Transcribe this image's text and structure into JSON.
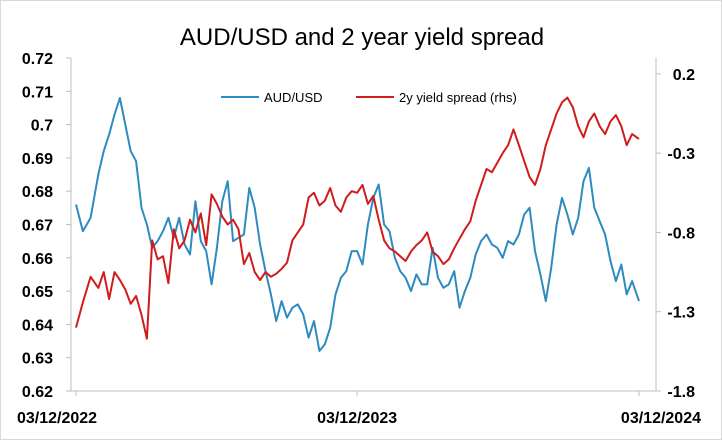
{
  "chart_data": {
    "type": "line",
    "title": "AUD/USD and 2 year yield spread",
    "x_ticks": [
      "03/12/2022",
      "03/12/2023",
      "03/12/2024"
    ],
    "x_range": [
      "2022-12-03",
      "2024-12-03"
    ],
    "y_left": {
      "ticks": [
        "0.72",
        "0.71",
        "0.7",
        "0.69",
        "0.68",
        "0.67",
        "0.66",
        "0.65",
        "0.64",
        "0.63",
        "0.62"
      ],
      "range": [
        0.62,
        0.72
      ]
    },
    "y_right": {
      "ticks": [
        "0.2",
        "-0.3",
        "-0.8",
        "-1.3",
        "-1.8"
      ],
      "range": [
        -1.8,
        0.3
      ]
    },
    "legend": {
      "placement": "top-center"
    },
    "grid": false,
    "series": [
      {
        "name": "AUD/USD",
        "axis": "left",
        "color": "#2E8BC0",
        "points": [
          [
            "2022-12-03",
            0.676
          ],
          [
            "2022-12-12",
            0.668
          ],
          [
            "2022-12-22",
            0.672
          ],
          [
            "2023-01-01",
            0.685
          ],
          [
            "2023-01-08",
            0.692
          ],
          [
            "2023-01-15",
            0.697
          ],
          [
            "2023-01-22",
            0.703
          ],
          [
            "2023-01-29",
            0.708
          ],
          [
            "2023-02-05",
            0.7
          ],
          [
            "2023-02-12",
            0.692
          ],
          [
            "2023-02-19",
            0.689
          ],
          [
            "2023-02-26",
            0.675
          ],
          [
            "2023-03-05",
            0.67
          ],
          [
            "2023-03-12",
            0.663
          ],
          [
            "2023-03-19",
            0.665
          ],
          [
            "2023-03-26",
            0.668
          ],
          [
            "2023-04-02",
            0.672
          ],
          [
            "2023-04-09",
            0.666
          ],
          [
            "2023-04-16",
            0.672
          ],
          [
            "2023-04-23",
            0.664
          ],
          [
            "2023-04-30",
            0.661
          ],
          [
            "2023-05-07",
            0.677
          ],
          [
            "2023-05-14",
            0.665
          ],
          [
            "2023-05-21",
            0.662
          ],
          [
            "2023-05-28",
            0.652
          ],
          [
            "2023-06-04",
            0.663
          ],
          [
            "2023-06-11",
            0.677
          ],
          [
            "2023-06-18",
            0.683
          ],
          [
            "2023-06-25",
            0.665
          ],
          [
            "2023-07-02",
            0.666
          ],
          [
            "2023-07-09",
            0.667
          ],
          [
            "2023-07-16",
            0.681
          ],
          [
            "2023-07-23",
            0.675
          ],
          [
            "2023-07-30",
            0.664
          ],
          [
            "2023-08-06",
            0.656
          ],
          [
            "2023-08-13",
            0.649
          ],
          [
            "2023-08-20",
            0.641
          ],
          [
            "2023-08-27",
            0.647
          ],
          [
            "2023-09-03",
            0.642
          ],
          [
            "2023-09-10",
            0.645
          ],
          [
            "2023-09-17",
            0.646
          ],
          [
            "2023-09-24",
            0.643
          ],
          [
            "2023-10-01",
            0.636
          ],
          [
            "2023-10-08",
            0.641
          ],
          [
            "2023-10-15",
            0.632
          ],
          [
            "2023-10-22",
            0.634
          ],
          [
            "2023-10-29",
            0.639
          ],
          [
            "2023-11-05",
            0.649
          ],
          [
            "2023-11-12",
            0.654
          ],
          [
            "2023-11-19",
            0.656
          ],
          [
            "2023-11-26",
            0.662
          ],
          [
            "2023-12-03",
            0.662
          ],
          [
            "2023-12-10",
            0.658
          ],
          [
            "2023-12-17",
            0.67
          ],
          [
            "2023-12-24",
            0.678
          ],
          [
            "2023-12-31",
            0.682
          ],
          [
            "2024-01-07",
            0.67
          ],
          [
            "2024-01-14",
            0.668
          ],
          [
            "2024-01-21",
            0.66
          ],
          [
            "2024-01-28",
            0.656
          ],
          [
            "2024-02-04",
            0.654
          ],
          [
            "2024-02-11",
            0.65
          ],
          [
            "2024-02-18",
            0.655
          ],
          [
            "2024-02-25",
            0.652
          ],
          [
            "2024-03-03",
            0.652
          ],
          [
            "2024-03-10",
            0.663
          ],
          [
            "2024-03-17",
            0.654
          ],
          [
            "2024-03-24",
            0.651
          ],
          [
            "2024-03-31",
            0.652
          ],
          [
            "2024-04-07",
            0.656
          ],
          [
            "2024-04-14",
            0.645
          ],
          [
            "2024-04-21",
            0.65
          ],
          [
            "2024-04-28",
            0.654
          ],
          [
            "2024-05-05",
            0.661
          ],
          [
            "2024-05-12",
            0.665
          ],
          [
            "2024-05-19",
            0.667
          ],
          [
            "2024-05-26",
            0.664
          ],
          [
            "2024-06-02",
            0.663
          ],
          [
            "2024-06-09",
            0.66
          ],
          [
            "2024-06-16",
            0.665
          ],
          [
            "2024-06-23",
            0.664
          ],
          [
            "2024-06-30",
            0.667
          ],
          [
            "2024-07-07",
            0.673
          ],
          [
            "2024-07-14",
            0.675
          ],
          [
            "2024-07-21",
            0.662
          ],
          [
            "2024-07-28",
            0.655
          ],
          [
            "2024-08-04",
            0.647
          ],
          [
            "2024-08-11",
            0.657
          ],
          [
            "2024-08-18",
            0.67
          ],
          [
            "2024-08-25",
            0.678
          ],
          [
            "2024-09-01",
            0.673
          ],
          [
            "2024-09-08",
            0.667
          ],
          [
            "2024-09-15",
            0.672
          ],
          [
            "2024-09-22",
            0.683
          ],
          [
            "2024-09-29",
            0.687
          ],
          [
            "2024-10-06",
            0.675
          ],
          [
            "2024-10-13",
            0.671
          ],
          [
            "2024-10-20",
            0.667
          ],
          [
            "2024-10-27",
            0.659
          ],
          [
            "2024-11-03",
            0.653
          ],
          [
            "2024-11-10",
            0.658
          ],
          [
            "2024-11-17",
            0.649
          ],
          [
            "2024-11-24",
            0.653
          ],
          [
            "2024-12-03",
            0.647
          ]
        ]
      },
      {
        "name": "2y yield spread (rhs)",
        "axis": "right",
        "color": "#D01C1C",
        "points": [
          [
            "2022-12-03",
            -1.4
          ],
          [
            "2022-12-12",
            -1.24
          ],
          [
            "2022-12-22",
            -1.08
          ],
          [
            "2023-01-01",
            -1.15
          ],
          [
            "2023-01-08",
            -1.05
          ],
          [
            "2023-01-15",
            -1.22
          ],
          [
            "2023-01-22",
            -1.05
          ],
          [
            "2023-01-29",
            -1.1
          ],
          [
            "2023-02-05",
            -1.16
          ],
          [
            "2023-02-12",
            -1.25
          ],
          [
            "2023-02-19",
            -1.2
          ],
          [
            "2023-02-26",
            -1.32
          ],
          [
            "2023-03-05",
            -1.47
          ],
          [
            "2023-03-12",
            -0.85
          ],
          [
            "2023-03-19",
            -0.97
          ],
          [
            "2023-03-26",
            -0.95
          ],
          [
            "2023-04-02",
            -1.12
          ],
          [
            "2023-04-09",
            -0.78
          ],
          [
            "2023-04-16",
            -0.9
          ],
          [
            "2023-04-23",
            -0.85
          ],
          [
            "2023-04-30",
            -0.72
          ],
          [
            "2023-05-07",
            -0.8
          ],
          [
            "2023-05-14",
            -0.68
          ],
          [
            "2023-05-21",
            -0.88
          ],
          [
            "2023-05-28",
            -0.56
          ],
          [
            "2023-06-04",
            -0.62
          ],
          [
            "2023-06-11",
            -0.7
          ],
          [
            "2023-06-18",
            -0.75
          ],
          [
            "2023-06-25",
            -0.72
          ],
          [
            "2023-07-02",
            -0.78
          ],
          [
            "2023-07-09",
            -1.0
          ],
          [
            "2023-07-16",
            -0.93
          ],
          [
            "2023-07-23",
            -1.05
          ],
          [
            "2023-07-30",
            -1.1
          ],
          [
            "2023-08-06",
            -1.05
          ],
          [
            "2023-08-13",
            -1.08
          ],
          [
            "2023-08-20",
            -1.06
          ],
          [
            "2023-08-27",
            -1.03
          ],
          [
            "2023-09-03",
            -0.99
          ],
          [
            "2023-09-10",
            -0.85
          ],
          [
            "2023-09-17",
            -0.8
          ],
          [
            "2023-09-24",
            -0.75
          ],
          [
            "2023-10-01",
            -0.58
          ],
          [
            "2023-10-08",
            -0.55
          ],
          [
            "2023-10-15",
            -0.63
          ],
          [
            "2023-10-22",
            -0.6
          ],
          [
            "2023-10-29",
            -0.52
          ],
          [
            "2023-11-05",
            -0.63
          ],
          [
            "2023-11-12",
            -0.67
          ],
          [
            "2023-11-19",
            -0.58
          ],
          [
            "2023-11-26",
            -0.54
          ],
          [
            "2023-12-03",
            -0.55
          ],
          [
            "2023-12-10",
            -0.5
          ],
          [
            "2023-12-17",
            -0.62
          ],
          [
            "2023-12-24",
            -0.57
          ],
          [
            "2023-12-31",
            -0.72
          ],
          [
            "2024-01-07",
            -0.85
          ],
          [
            "2024-01-14",
            -0.9
          ],
          [
            "2024-01-21",
            -0.92
          ],
          [
            "2024-01-28",
            -0.95
          ],
          [
            "2024-02-04",
            -0.98
          ],
          [
            "2024-02-11",
            -0.92
          ],
          [
            "2024-02-18",
            -0.88
          ],
          [
            "2024-02-25",
            -0.85
          ],
          [
            "2024-03-03",
            -0.8
          ],
          [
            "2024-03-10",
            -0.92
          ],
          [
            "2024-03-17",
            -0.95
          ],
          [
            "2024-03-24",
            -1.0
          ],
          [
            "2024-03-31",
            -0.97
          ],
          [
            "2024-04-07",
            -0.9
          ],
          [
            "2024-04-14",
            -0.84
          ],
          [
            "2024-04-21",
            -0.78
          ],
          [
            "2024-04-28",
            -0.73
          ],
          [
            "2024-05-05",
            -0.6
          ],
          [
            "2024-05-12",
            -0.5
          ],
          [
            "2024-05-19",
            -0.4
          ],
          [
            "2024-05-26",
            -0.42
          ],
          [
            "2024-06-02",
            -0.36
          ],
          [
            "2024-06-09",
            -0.3
          ],
          [
            "2024-06-16",
            -0.25
          ],
          [
            "2024-06-23",
            -0.15
          ],
          [
            "2024-06-30",
            -0.25
          ],
          [
            "2024-07-07",
            -0.35
          ],
          [
            "2024-07-14",
            -0.45
          ],
          [
            "2024-07-21",
            -0.5
          ],
          [
            "2024-07-28",
            -0.4
          ],
          [
            "2024-08-04",
            -0.25
          ],
          [
            "2024-08-11",
            -0.15
          ],
          [
            "2024-08-18",
            -0.05
          ],
          [
            "2024-08-25",
            0.02
          ],
          [
            "2024-09-01",
            0.05
          ],
          [
            "2024-09-08",
            -0.01
          ],
          [
            "2024-09-15",
            -0.13
          ],
          [
            "2024-09-22",
            -0.2
          ],
          [
            "2024-09-29",
            -0.1
          ],
          [
            "2024-10-06",
            -0.05
          ],
          [
            "2024-10-13",
            -0.13
          ],
          [
            "2024-10-20",
            -0.18
          ],
          [
            "2024-10-27",
            -0.1
          ],
          [
            "2024-11-03",
            -0.06
          ],
          [
            "2024-11-10",
            -0.13
          ],
          [
            "2024-11-17",
            -0.25
          ],
          [
            "2024-11-24",
            -0.18
          ],
          [
            "2024-12-03",
            -0.21
          ]
        ]
      }
    ]
  }
}
